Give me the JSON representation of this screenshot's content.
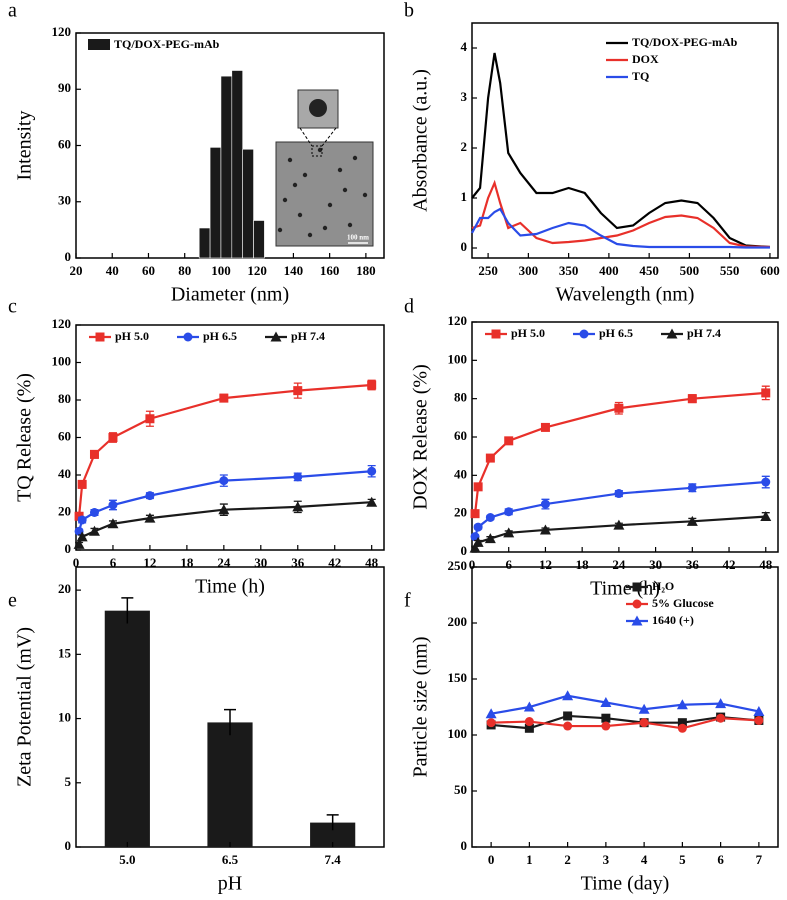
{
  "chart_data": [
    {
      "type": "histogram",
      "panel": "a",
      "xlabel": "Diameter (nm)",
      "ylabel": "Intensity",
      "bins": [
        88,
        94,
        100,
        106,
        112,
        118,
        124
      ],
      "series": [
        {
          "name": "TQ/DOX-PEG-mAb",
          "color": "#1a1a1a",
          "values": [
            16,
            59,
            97,
            100,
            58,
            20
          ]
        }
      ],
      "inset_label": "100 nm",
      "xlim": [
        20,
        190
      ],
      "ylim": [
        0,
        120
      ],
      "xticks": [
        20,
        40,
        60,
        80,
        100,
        120,
        140,
        160,
        180
      ],
      "yticks": [
        0,
        30,
        60,
        90,
        120
      ],
      "legend": "upper left"
    },
    {
      "type": "line",
      "panel": "b",
      "xlabel": "Wavelength (nm)",
      "ylabel": "Absorbance (a.u.)",
      "x": [
        230,
        240,
        250,
        258,
        265,
        275,
        290,
        310,
        330,
        350,
        370,
        390,
        410,
        430,
        450,
        470,
        490,
        510,
        530,
        550,
        570,
        600
      ],
      "series": [
        {
          "name": "TQ/DOX-PEG-mAb",
          "color": "#000000",
          "values": [
            1.0,
            1.2,
            3.0,
            3.9,
            3.3,
            1.9,
            1.5,
            1.1,
            1.1,
            1.2,
            1.1,
            0.7,
            0.4,
            0.45,
            0.7,
            0.9,
            0.95,
            0.9,
            0.6,
            0.2,
            0.05,
            0.02
          ]
        },
        {
          "name": "DOX",
          "color": "#e8302a",
          "values": [
            0.4,
            0.45,
            1.0,
            1.3,
            0.9,
            0.4,
            0.5,
            0.2,
            0.1,
            0.12,
            0.15,
            0.2,
            0.25,
            0.35,
            0.5,
            0.62,
            0.65,
            0.6,
            0.4,
            0.1,
            0.03,
            0.02
          ]
        },
        {
          "name": "TQ",
          "color": "#2a4ce8",
          "values": [
            0.3,
            0.6,
            0.6,
            0.72,
            0.78,
            0.5,
            0.25,
            0.28,
            0.4,
            0.5,
            0.45,
            0.25,
            0.08,
            0.04,
            0.02,
            0.02,
            0.02,
            0.02,
            0.02,
            0.02,
            0.01,
            0.01
          ]
        }
      ],
      "xlim": [
        230,
        610
      ],
      "ylim": [
        -0.2,
        4.5
      ],
      "xticks": [
        250,
        300,
        350,
        400,
        450,
        500,
        550,
        600
      ],
      "yticks": [
        0,
        1,
        2,
        3,
        4
      ],
      "legend": "upper right"
    },
    {
      "type": "line",
      "panel": "c",
      "xlabel": "Time (h)",
      "ylabel": "TQ Release (%)",
      "x": [
        0.5,
        1,
        3,
        6,
        12,
        24,
        36,
        48
      ],
      "series": [
        {
          "name": "pH 5.0",
          "color": "#e8302a",
          "marker": "square",
          "values": [
            18,
            35,
            51,
            60,
            70,
            81,
            85,
            88
          ],
          "errors": [
            1,
            2,
            2,
            2.5,
            4,
            2,
            4,
            2.5
          ]
        },
        {
          "name": "pH 6.5",
          "color": "#2a4ce8",
          "marker": "circle",
          "values": [
            10,
            16,
            20,
            24,
            29,
            37,
            39,
            42
          ],
          "errors": [
            1,
            1.5,
            1.5,
            2.5,
            1.5,
            3,
            2,
            3
          ]
        },
        {
          "name": "pH 7.4",
          "color": "#1a1a1a",
          "marker": "triangle",
          "values": [
            3,
            7,
            10,
            14,
            17,
            21.5,
            23,
            25.5
          ],
          "errors": [
            1,
            1,
            1.5,
            1.5,
            1.5,
            3,
            3,
            1.5
          ]
        }
      ],
      "xlim": [
        0,
        50
      ],
      "ylim": [
        0,
        120
      ],
      "xticks": [
        0,
        6,
        12,
        18,
        24,
        30,
        36,
        42,
        48
      ],
      "yticks": [
        0,
        20,
        40,
        60,
        80,
        100,
        120
      ],
      "legend": "top"
    },
    {
      "type": "line",
      "panel": "d",
      "xlabel": "Time (h)",
      "ylabel": "DOX Release (%)",
      "x": [
        0.5,
        1,
        3,
        6,
        12,
        24,
        36,
        48
      ],
      "series": [
        {
          "name": "pH 5.0",
          "color": "#e8302a",
          "marker": "square",
          "values": [
            20,
            34,
            49,
            58,
            65,
            75,
            80,
            83
          ],
          "errors": [
            1,
            1.5,
            1.5,
            1.5,
            1.5,
            3,
            2,
            3.5
          ]
        },
        {
          "name": "pH 6.5",
          "color": "#2a4ce8",
          "marker": "circle",
          "values": [
            8,
            13,
            18,
            21,
            25,
            30.5,
            33.5,
            36.5
          ],
          "errors": [
            1,
            1,
            1,
            1.5,
            2.5,
            1.5,
            2,
            3
          ]
        },
        {
          "name": "pH 7.4",
          "color": "#1a1a1a",
          "marker": "triangle",
          "values": [
            2,
            5,
            7,
            10,
            11.5,
            14,
            16,
            18.5
          ],
          "errors": [
            1,
            1,
            1,
            1,
            1,
            1,
            1.5,
            2
          ]
        }
      ],
      "xlim": [
        0,
        50
      ],
      "ylim": [
        0,
        120
      ],
      "xticks": [
        0,
        6,
        12,
        18,
        24,
        30,
        36,
        42,
        48
      ],
      "yticks": [
        0,
        20,
        40,
        60,
        80,
        100,
        120
      ],
      "legend": "top"
    },
    {
      "type": "bar",
      "panel": "e",
      "xlabel": "pH",
      "ylabel": "Zeta Potential (mV)",
      "categories": [
        "5.0",
        "6.5",
        "7.4"
      ],
      "values": [
        18.4,
        9.7,
        1.9
      ],
      "errors": [
        1,
        1,
        0.6
      ],
      "color": "#1a1a1a",
      "ylim": [
        0,
        21.8
      ],
      "yticks": [
        0,
        5,
        10,
        15,
        20
      ]
    },
    {
      "type": "line",
      "panel": "f",
      "xlabel": "Time (day)",
      "ylabel": "Particle size (nm)",
      "x": [
        0,
        1,
        2,
        3,
        4,
        5,
        6,
        7
      ],
      "series": [
        {
          "name": "H₂O",
          "color": "#1a1a1a",
          "marker": "square",
          "values": [
            109,
            106,
            117,
            115,
            111,
            111,
            116,
            113
          ]
        },
        {
          "name": "5% Glucose",
          "color": "#e8302a",
          "marker": "circle",
          "values": [
            111,
            112,
            108,
            108,
            111,
            106,
            115,
            113
          ]
        },
        {
          "name": "1640 (+)",
          "color": "#2a4ce8",
          "marker": "triangle",
          "values": [
            119,
            125,
            135,
            129,
            123,
            127,
            128,
            121
          ]
        }
      ],
      "xlim": [
        -0.5,
        7.5
      ],
      "ylim": [
        0,
        250
      ],
      "xticks": [
        0,
        1,
        2,
        3,
        4,
        5,
        6,
        7
      ],
      "yticks": [
        0,
        50,
        100,
        150,
        200,
        250
      ],
      "legend": "upper right"
    }
  ]
}
